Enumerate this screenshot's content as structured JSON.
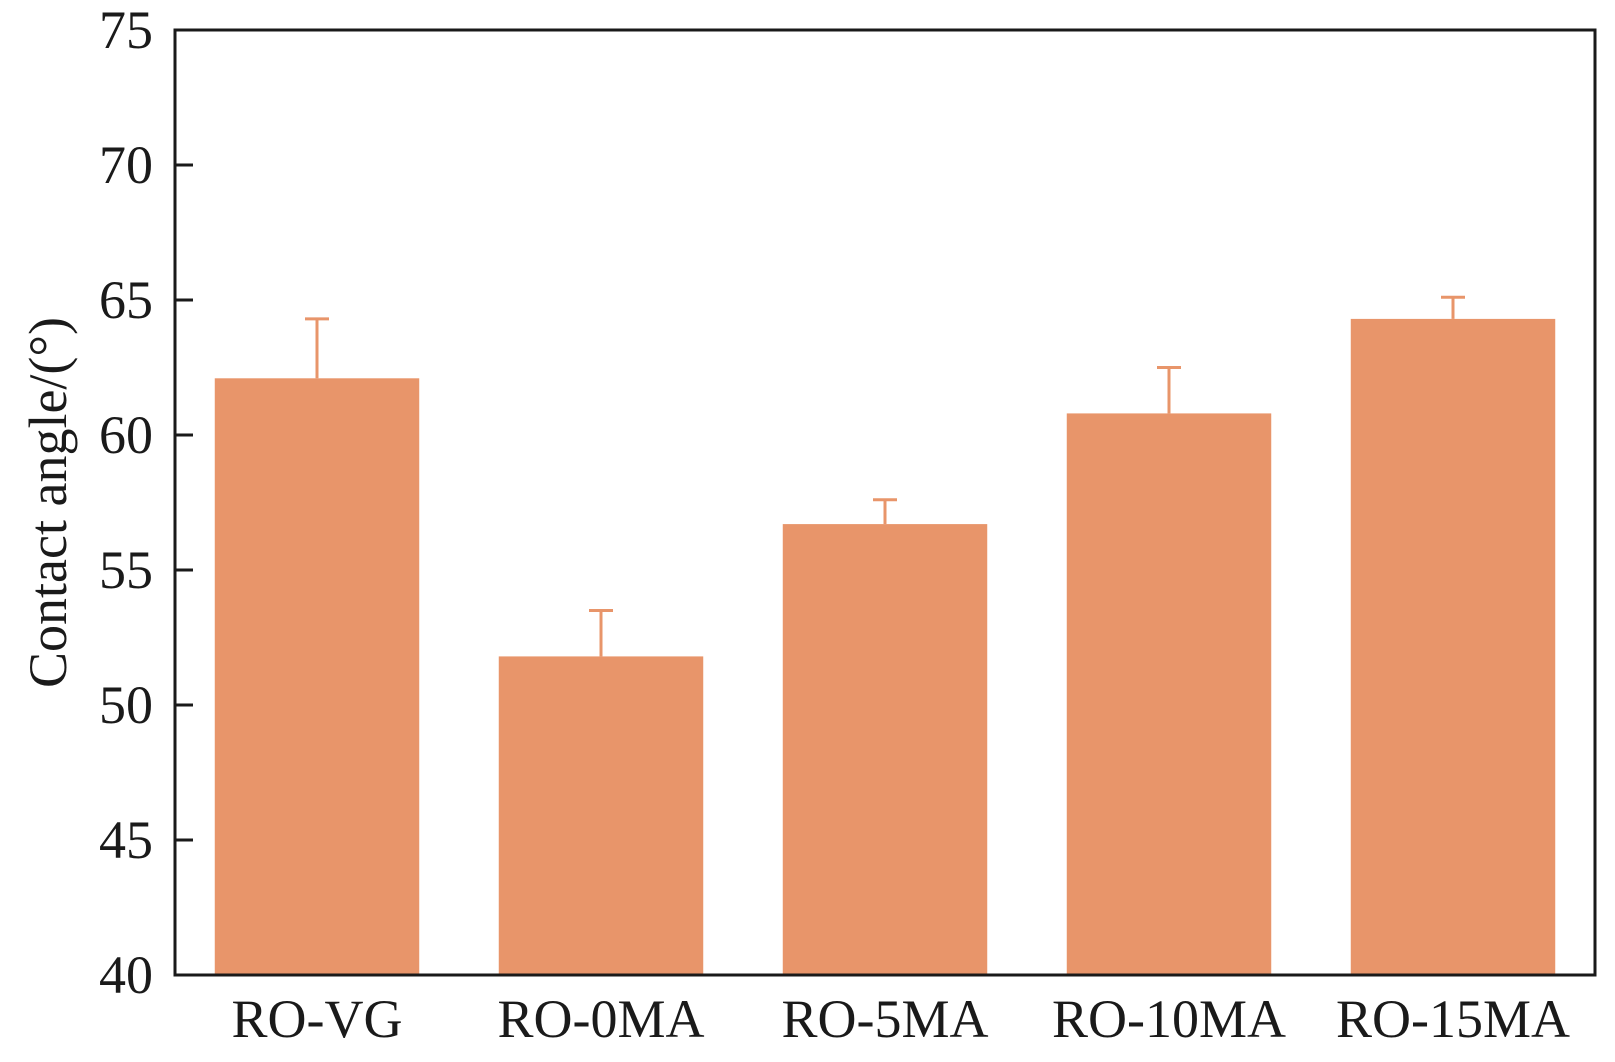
{
  "chart_data": {
    "type": "bar",
    "title": "",
    "xlabel": "",
    "ylabel": "Contact angle/(°)",
    "categories": [
      "RO-VG",
      "RO-0MA",
      "RO-5MA",
      "RO-10MA",
      "RO-15MA"
    ],
    "series": [
      {
        "values": [
          62.1,
          51.8,
          56.7,
          60.8,
          64.3
        ],
        "error": [
          2.2,
          1.7,
          0.9,
          1.7,
          0.8
        ]
      }
    ],
    "ylim": [
      40,
      75
    ],
    "yticks": [
      "40",
      "45",
      "50",
      "55",
      "60",
      "65",
      "70",
      "75"
    ],
    "grid": false,
    "legend": "none",
    "colors": {
      "bar": "#E8956A",
      "error_bar": "#E8956A",
      "axis": "#1a1a1a"
    }
  }
}
